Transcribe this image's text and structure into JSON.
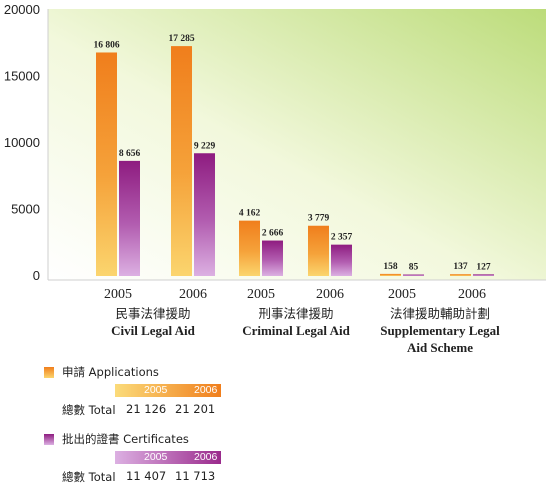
{
  "colors": {
    "applications": "#f0922a",
    "applications_light": "#fbcf6a",
    "certificates": "#9a2a8c",
    "certificates_light": "#d7a3df"
  },
  "chart_data": {
    "type": "bar",
    "ylim": [
      0,
      20000
    ],
    "yticks": [
      "20000",
      "15000",
      "10000",
      "5000",
      "0"
    ],
    "categories": [
      "2005",
      "2006",
      "2005",
      "2006",
      "2005",
      "2006"
    ],
    "groups": [
      {
        "zh": "民事法律援助",
        "en": "Civil Legal Aid"
      },
      {
        "zh": "刑事法律援助",
        "en": "Criminal Legal Aid"
      },
      {
        "zh": "法律援助輔助計劃",
        "en": "Supplementary Legal Aid Scheme"
      }
    ],
    "series": [
      {
        "name": "申請 Applications",
        "values": [
          16806,
          17285,
          4162,
          3779,
          158,
          137
        ],
        "labels": [
          "16 806",
          "17 285",
          "4 162",
          "3 779",
          "158",
          "137"
        ]
      },
      {
        "name": "批出的證書 Certificates",
        "values": [
          8656,
          9229,
          2666,
          2357,
          85,
          127
        ],
        "labels": [
          "8 656",
          "9 229",
          "2 666",
          "2 357",
          "85",
          "127"
        ]
      }
    ],
    "grid": false,
    "legend": "bottom"
  },
  "legend": {
    "applications": {
      "label": "申請 Applications",
      "years": [
        "2005",
        "2006"
      ],
      "total_label": "總數 Total",
      "totals": [
        "21 126",
        "21 201"
      ]
    },
    "certificates": {
      "label": "批出的證書 Certificates",
      "years": [
        "2005",
        "2006"
      ],
      "total_label": "總數 Total",
      "totals": [
        "11 407",
        "11 713"
      ]
    }
  }
}
